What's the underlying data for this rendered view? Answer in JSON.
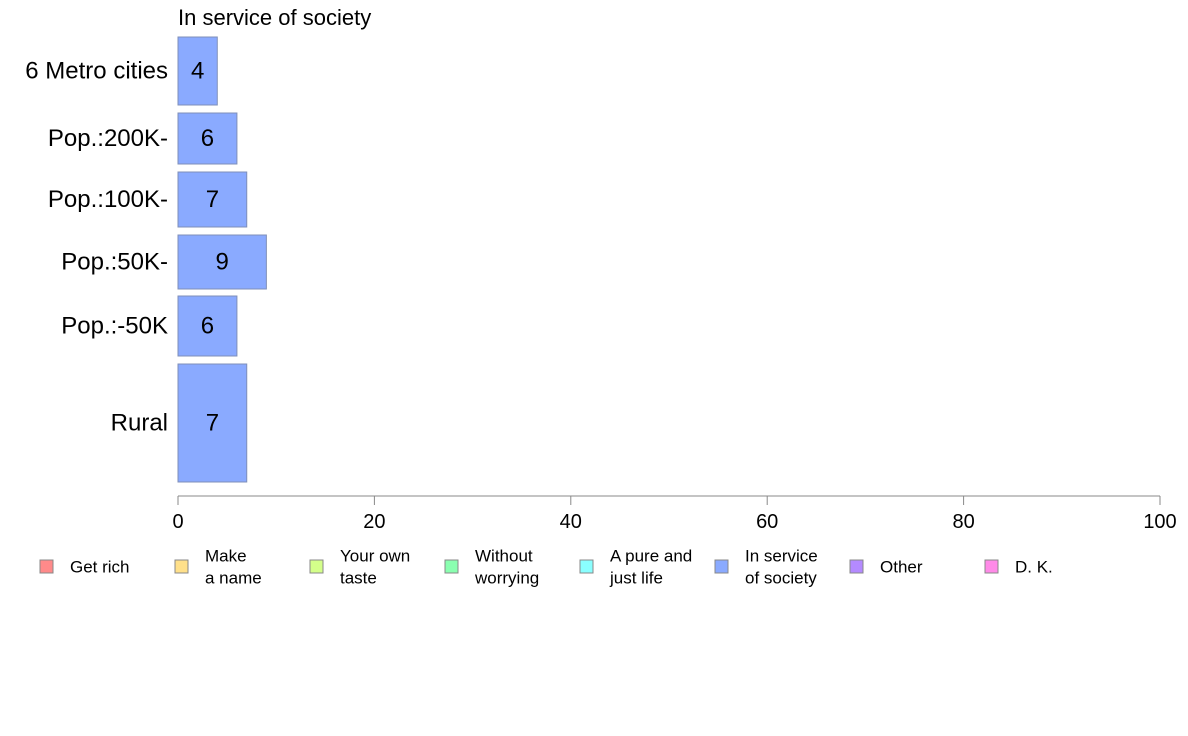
{
  "chart_data": {
    "type": "bar",
    "orientation": "horizontal",
    "title": "In service of society",
    "categories": [
      "6 Metro cities",
      "Pop.:200K-",
      "Pop.:100K-",
      "Pop.:50K-",
      "Pop.:-50K",
      "Rural"
    ],
    "values": [
      4,
      6,
      7,
      9,
      6,
      7
    ],
    "series_name": "In service of society",
    "xlim": [
      0,
      100
    ],
    "xticks": [
      0,
      20,
      40,
      60,
      80,
      100
    ],
    "xlabel": "",
    "ylabel": "",
    "grid": false,
    "bar_color": "#8aaaff",
    "legend_position": "bottom",
    "legend": [
      {
        "label": [
          "Get rich"
        ],
        "color": "#ff8a8a"
      },
      {
        "label": [
          "Make",
          "a name"
        ],
        "color": "#ffe08a"
      },
      {
        "label": [
          "Your own",
          "taste"
        ],
        "color": "#d4ff8a"
      },
      {
        "label": [
          "Without",
          "worrying"
        ],
        "color": "#8affb0"
      },
      {
        "label": [
          "A pure and",
          "just life"
        ],
        "color": "#8affff"
      },
      {
        "label": [
          "In service",
          "of society"
        ],
        "color": "#8aaaff"
      },
      {
        "label": [
          "Other"
        ],
        "color": "#b48aff"
      },
      {
        "label": [
          "D. K."
        ],
        "color": "#ff8ae8"
      }
    ]
  }
}
